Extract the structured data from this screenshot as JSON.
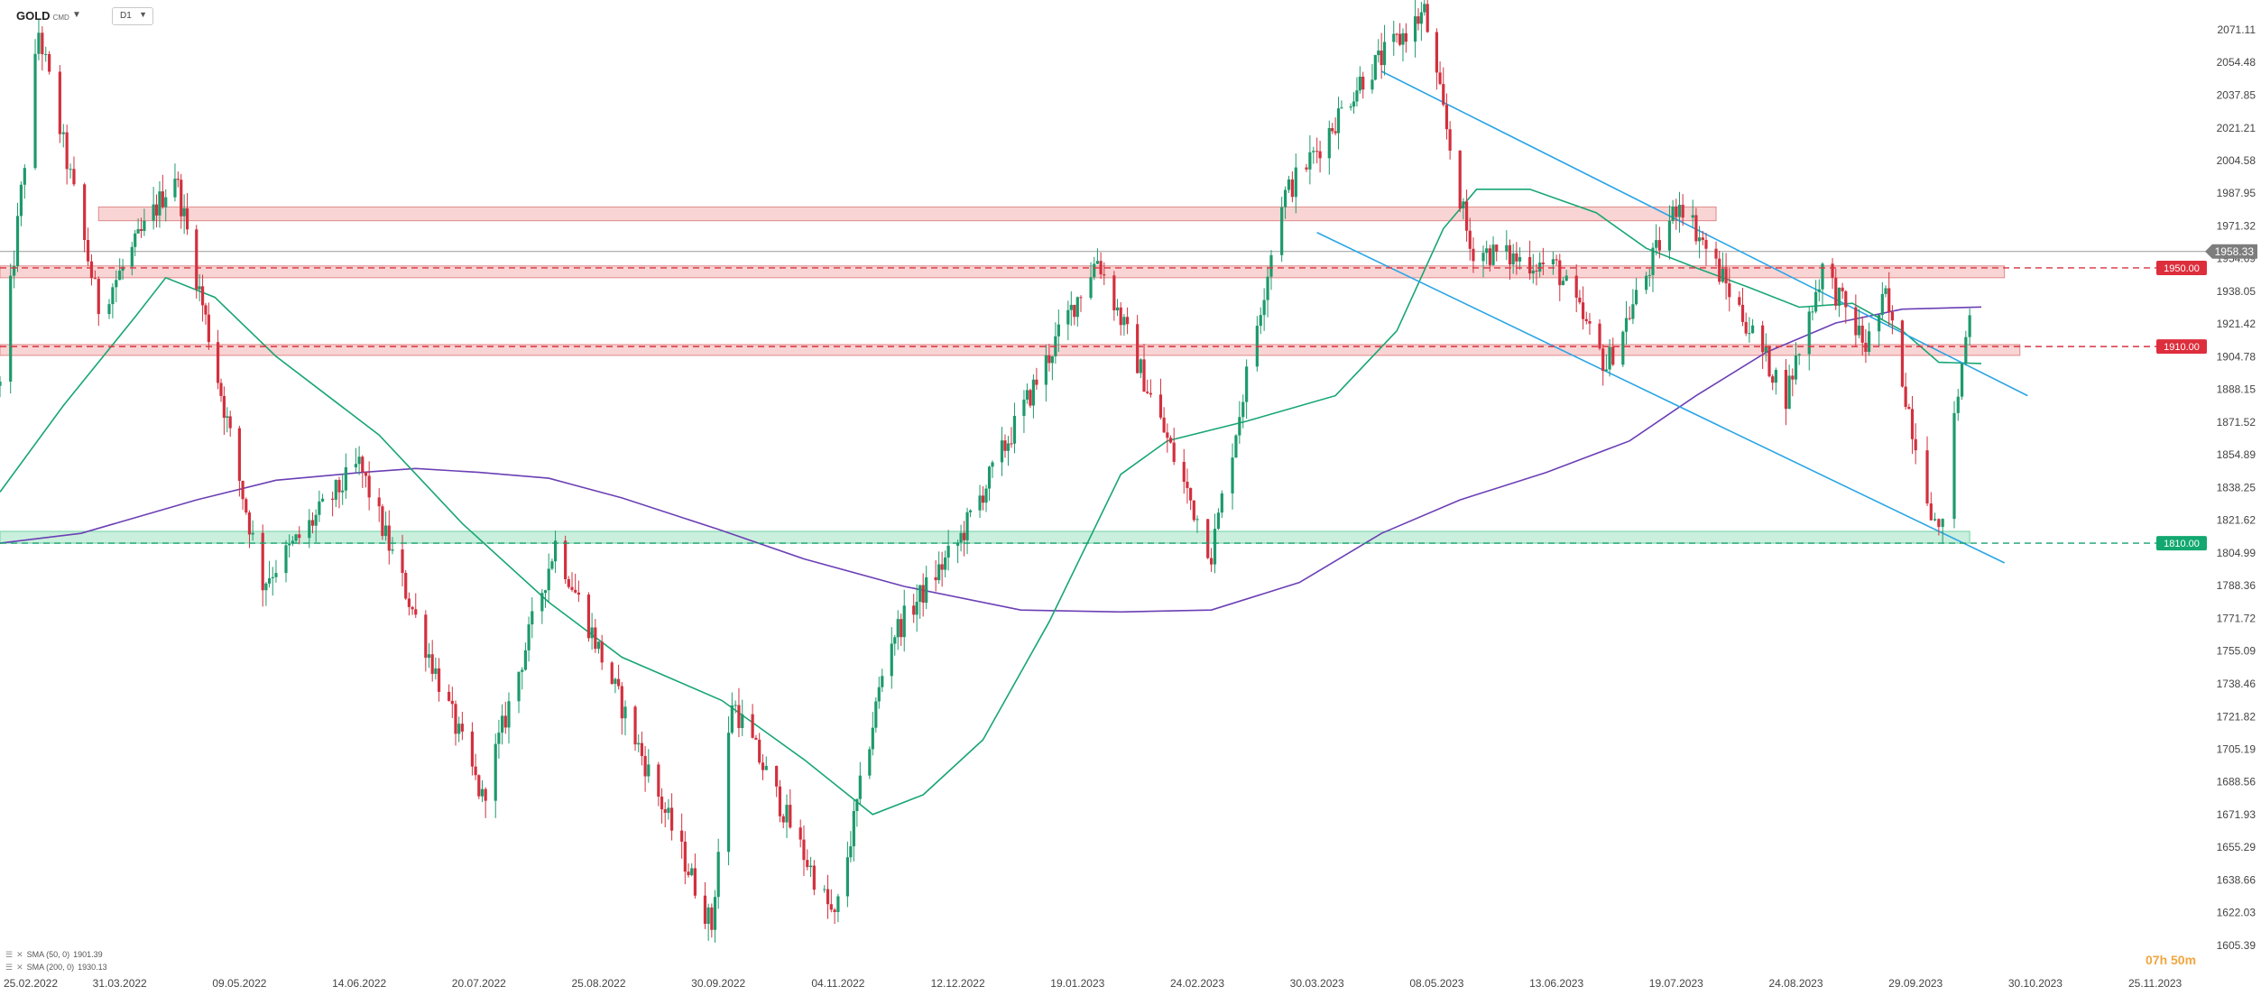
{
  "header": {
    "symbol": "GOLD",
    "symbol_sub": "CMD",
    "timeframe": "D1"
  },
  "legend": [
    {
      "label": "SMA (50, 0)",
      "value": "1901.39"
    },
    {
      "label": "SMA (200, 0)",
      "value": "1930.13"
    }
  ],
  "timer": "07h 50m",
  "colors": {
    "up": "#1d9a6c",
    "down": "#d2303e",
    "sma50": "#17a673",
    "sma200": "#6b3fb5",
    "trend": "#2aa5e6",
    "res_zone": "#f7c5c5",
    "sup_zone": "#bdebd5"
  },
  "chart_data": {
    "type": "candlestick",
    "instrument": "GOLD",
    "timeframe": "D1",
    "ylim": [
      1605.39,
      2088.5
    ],
    "y_ticks": [
      "2071.11",
      "2054.48",
      "2037.85",
      "2021.21",
      "2004.58",
      "1987.95",
      "1971.32",
      "1954.69",
      "1938.05",
      "1921.42",
      "1904.78",
      "1888.15",
      "1871.52",
      "1854.89",
      "1838.25",
      "1821.62",
      "1804.99",
      "1788.36",
      "1771.72",
      "1755.09",
      "1738.46",
      "1721.82",
      "1705.19",
      "1688.56",
      "1671.93",
      "1655.29",
      "1638.66",
      "1622.03",
      "1605.39"
    ],
    "x_ticks": [
      "25.02.2022",
      "31.03.2022",
      "09.05.2022",
      "14.06.2022",
      "20.07.2022",
      "25.08.2022",
      "30.09.2022",
      "04.11.2022",
      "12.12.2022",
      "19.01.2023",
      "24.02.2023",
      "30.03.2023",
      "08.05.2023",
      "13.06.2023",
      "19.07.2023",
      "24.08.2023",
      "29.09.2023",
      "30.10.2023",
      "25.11.2023"
    ],
    "current_price": "1958.33",
    "levels": [
      {
        "value": 1950.0,
        "label": "1950.00",
        "kind": "resistance"
      },
      {
        "value": 1910.0,
        "label": "1910.00",
        "kind": "resistance"
      },
      {
        "value": 1810.0,
        "label": "1810.00",
        "kind": "support"
      }
    ],
    "key_points": [
      {
        "date": "2022-02-25",
        "price": 1890
      },
      {
        "date": "2022-03-08",
        "price": 2070
      },
      {
        "date": "2022-03-25",
        "price": 1930
      },
      {
        "date": "2022-04-18",
        "price": 1998
      },
      {
        "date": "2022-05-16",
        "price": 1790
      },
      {
        "date": "2022-06-14",
        "price": 1850
      },
      {
        "date": "2022-07-21",
        "price": 1680
      },
      {
        "date": "2022-08-12",
        "price": 1810
      },
      {
        "date": "2022-09-28",
        "price": 1615
      },
      {
        "date": "2022-10-04",
        "price": 1730
      },
      {
        "date": "2022-11-03",
        "price": 1618
      },
      {
        "date": "2022-11-20",
        "price": 1760
      },
      {
        "date": "2022-12-12",
        "price": 1810
      },
      {
        "date": "2023-01-25",
        "price": 1955
      },
      {
        "date": "2023-02-28",
        "price": 1805
      },
      {
        "date": "2023-03-20",
        "price": 1985
      },
      {
        "date": "2023-04-13",
        "price": 2045
      },
      {
        "date": "2023-05-04",
        "price": 2080
      },
      {
        "date": "2023-05-18",
        "price": 1960
      },
      {
        "date": "2023-06-13",
        "price": 1950
      },
      {
        "date": "2023-06-28",
        "price": 1900
      },
      {
        "date": "2023-07-20",
        "price": 1985
      },
      {
        "date": "2023-08-21",
        "price": 1885
      },
      {
        "date": "2023-09-01",
        "price": 1950
      },
      {
        "date": "2023-09-14",
        "price": 1910
      },
      {
        "date": "2023-09-20",
        "price": 1935
      },
      {
        "date": "2023-10-05",
        "price": 1812
      },
      {
        "date": "2023-10-13",
        "price": 1930
      },
      {
        "date": "2023-10-16",
        "price": 1958
      }
    ],
    "sma50": [
      {
        "date": "2022-02-25",
        "price": 1836
      },
      {
        "date": "2022-03-15",
        "price": 1880
      },
      {
        "date": "2022-04-05",
        "price": 1925
      },
      {
        "date": "2022-04-15",
        "price": 1945
      },
      {
        "date": "2022-05-01",
        "price": 1935
      },
      {
        "date": "2022-05-20",
        "price": 1905
      },
      {
        "date": "2022-06-20",
        "price": 1865
      },
      {
        "date": "2022-07-15",
        "price": 1820
      },
      {
        "date": "2022-08-10",
        "price": 1780
      },
      {
        "date": "2022-09-01",
        "price": 1752
      },
      {
        "date": "2022-10-01",
        "price": 1730
      },
      {
        "date": "2022-10-25",
        "price": 1700
      },
      {
        "date": "2022-11-15",
        "price": 1672
      },
      {
        "date": "2022-12-01",
        "price": 1682
      },
      {
        "date": "2022-12-20",
        "price": 1710
      },
      {
        "date": "2023-01-10",
        "price": 1770
      },
      {
        "date": "2023-02-01",
        "price": 1845
      },
      {
        "date": "2023-02-15",
        "price": 1862
      },
      {
        "date": "2023-03-10",
        "price": 1872
      },
      {
        "date": "2023-04-05",
        "price": 1885
      },
      {
        "date": "2023-04-25",
        "price": 1918
      },
      {
        "date": "2023-05-10",
        "price": 1970
      },
      {
        "date": "2023-05-20",
        "price": 1990
      },
      {
        "date": "2023-06-05",
        "price": 1990
      },
      {
        "date": "2023-06-25",
        "price": 1978
      },
      {
        "date": "2023-07-10",
        "price": 1960
      },
      {
        "date": "2023-07-25",
        "price": 1950
      },
      {
        "date": "2023-08-10",
        "price": 1940
      },
      {
        "date": "2023-08-25",
        "price": 1930
      },
      {
        "date": "2023-09-10",
        "price": 1932
      },
      {
        "date": "2023-09-25",
        "price": 1918
      },
      {
        "date": "2023-10-05",
        "price": 1902
      },
      {
        "date": "2023-10-16",
        "price": 1901.39
      }
    ],
    "sma200": [
      {
        "date": "2022-02-25",
        "price": 1810
      },
      {
        "date": "2022-03-20",
        "price": 1815
      },
      {
        "date": "2022-04-25",
        "price": 1832
      },
      {
        "date": "2022-05-20",
        "price": 1842
      },
      {
        "date": "2022-06-15",
        "price": 1846
      },
      {
        "date": "2022-07-01",
        "price": 1848
      },
      {
        "date": "2022-07-20",
        "price": 1846
      },
      {
        "date": "2022-08-10",
        "price": 1843
      },
      {
        "date": "2022-09-01",
        "price": 1833
      },
      {
        "date": "2022-09-30",
        "price": 1817
      },
      {
        "date": "2022-10-25",
        "price": 1802
      },
      {
        "date": "2022-11-25",
        "price": 1788
      },
      {
        "date": "2023-01-01",
        "price": 1776
      },
      {
        "date": "2023-02-01",
        "price": 1775
      },
      {
        "date": "2023-02-28",
        "price": 1776
      },
      {
        "date": "2023-03-25",
        "price": 1790
      },
      {
        "date": "2023-04-20",
        "price": 1815
      },
      {
        "date": "2023-05-15",
        "price": 1832
      },
      {
        "date": "2023-06-10",
        "price": 1846
      },
      {
        "date": "2023-07-05",
        "price": 1862
      },
      {
        "date": "2023-07-25",
        "price": 1885
      },
      {
        "date": "2023-08-15",
        "price": 1907
      },
      {
        "date": "2023-09-05",
        "price": 1922
      },
      {
        "date": "2023-09-25",
        "price": 1929
      },
      {
        "date": "2023-10-16",
        "price": 1930.13
      }
    ],
    "trendlines": [
      {
        "from": {
          "date": "2023-04-20",
          "price": 2050
        },
        "to": {
          "date": "2023-10-28",
          "price": 1885
        }
      },
      {
        "from": {
          "date": "2023-03-30",
          "price": 1968
        },
        "to": {
          "date": "2023-10-22",
          "price": 1800
        }
      }
    ],
    "zones": [
      {
        "from_date": "2022-03-25",
        "to_date": "2023-07-31",
        "low": 1974,
        "high": 1981,
        "kind": "resistance"
      },
      {
        "from_date": "2022-02-25",
        "to_date": "2023-10-22",
        "low": 1945,
        "high": 1951,
        "kind": "resistance"
      },
      {
        "from_date": "2022-02-25",
        "to_date": "2023-10-26",
        "low": 1905.5,
        "high": 1911,
        "kind": "resistance"
      },
      {
        "from_date": "2022-02-25",
        "to_date": "2023-10-13",
        "low": 1810,
        "high": 1816,
        "kind": "support"
      }
    ],
    "grid": false,
    "legend_position": "bottom-left"
  }
}
